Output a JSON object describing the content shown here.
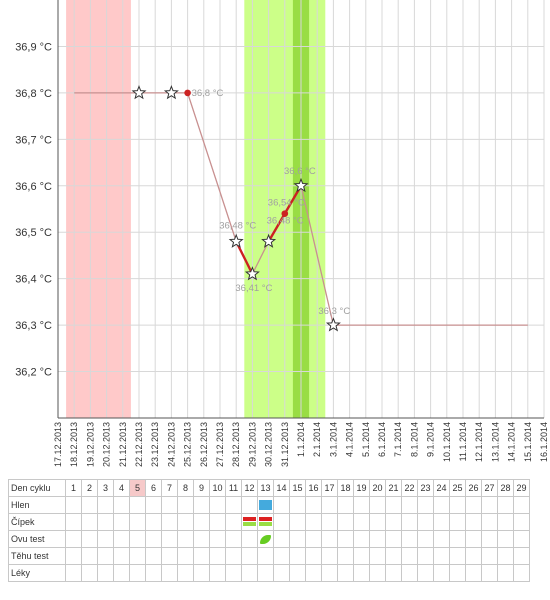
{
  "chart_data": {
    "type": "line",
    "y_unit": "°C",
    "ylim": [
      36.1,
      37.0
    ],
    "y_ticks": [
      "36,2 °C",
      "36,3 °C",
      "36,4 °C",
      "36,5 °C",
      "36,6 °C",
      "36,7 °C",
      "36,8 °C",
      "36,9 °C"
    ],
    "y_tick_values": [
      36.2,
      36.3,
      36.4,
      36.5,
      36.6,
      36.7,
      36.8,
      36.9
    ],
    "x_labels": [
      "17.12.2013",
      "18.12.2013",
      "19.12.2013",
      "20.12.2013",
      "21.12.2013",
      "22.12.2013",
      "23.12.2013",
      "24.12.2013",
      "25.12.2013",
      "26.12.2013",
      "27.12.2013",
      "28.12.2013",
      "29.12.2013",
      "30.12.2013",
      "31.12.2013",
      "1.1.2014",
      "2.1.2014",
      "3.1.2014",
      "4.1.2014",
      "5.1.2014",
      "6.1.2014",
      "7.1.2014",
      "8.1.2014",
      "9.1.2014",
      "10.1.2014",
      "11.1.2014",
      "12.1.2014",
      "13.1.2014",
      "14.1.2014",
      "15.1.2014",
      "16.1.2014"
    ],
    "menstruation_band": [
      "17.12.2013",
      "21.12.2013"
    ],
    "fertile_band": [
      "28.12.2013",
      "2.1.2014"
    ],
    "peak_band": [
      "31.12.2013",
      "1.1.2014"
    ],
    "colors": {
      "menstruation": "#ffc9c9",
      "fertile": "#ccff88",
      "peak": "#99dd44",
      "line": "#c89090",
      "segment": "#cc2222",
      "marker": "#cc2222",
      "label": "#a0a0a0",
      "grid": "#d8d8d8"
    },
    "baseline_start": [
      "18.12.2013",
      36.8
    ],
    "baseline_end": [
      "15.1.2014",
      36.3
    ],
    "points": [
      {
        "date": "22.12.2013",
        "value": 36.8,
        "marker": "star",
        "label": ""
      },
      {
        "date": "24.12.2013",
        "value": 36.8,
        "marker": "star",
        "label": ""
      },
      {
        "date": "25.12.2013",
        "value": 36.8,
        "marker": "dot",
        "label": "36,8 °C"
      },
      {
        "date": "28.12.2013",
        "value": 36.48,
        "marker": "star",
        "label": "36,48 °C"
      },
      {
        "date": "29.12.2013",
        "value": 36.41,
        "marker": "star",
        "label": "36,41 °C"
      },
      {
        "date": "30.12.2013",
        "value": 36.48,
        "marker": "star",
        "label": "36,48 °C"
      },
      {
        "date": "31.12.2013",
        "value": 36.54,
        "marker": "dot",
        "label": "36,54 °C"
      },
      {
        "date": "1.1.2014",
        "value": 36.6,
        "marker": "star",
        "label": "36,6 °C"
      },
      {
        "date": "3.1.2014",
        "value": 36.3,
        "marker": "star",
        "label": "36,3 °C"
      }
    ],
    "highlight_segments": [
      [
        3,
        4
      ],
      [
        5,
        6
      ],
      [
        6,
        7
      ]
    ]
  },
  "cycle_table": {
    "row_labels": [
      "Den cyklu",
      "Hlen",
      "Čípek",
      "Ovu test",
      "Těhu test",
      "Léky"
    ],
    "days": [
      "1",
      "2",
      "3",
      "4",
      "5",
      "6",
      "7",
      "8",
      "9",
      "10",
      "11",
      "12",
      "13",
      "14",
      "15",
      "16",
      "17",
      "18",
      "19",
      "20",
      "21",
      "22",
      "23",
      "24",
      "25",
      "26",
      "27",
      "28",
      "29"
    ],
    "current_day": "5",
    "hlen": [
      {
        "day": "13",
        "color": "#44aadd"
      }
    ],
    "cipek": [
      {
        "day": "12",
        "colors": [
          "#dd2222",
          "#99dd44"
        ]
      },
      {
        "day": "13",
        "colors": [
          "#dd2222",
          "#99dd44"
        ]
      }
    ],
    "ovu_test": [
      {
        "day": "13",
        "color": "#66cc22",
        "icon": "leaf-icon"
      }
    ]
  }
}
